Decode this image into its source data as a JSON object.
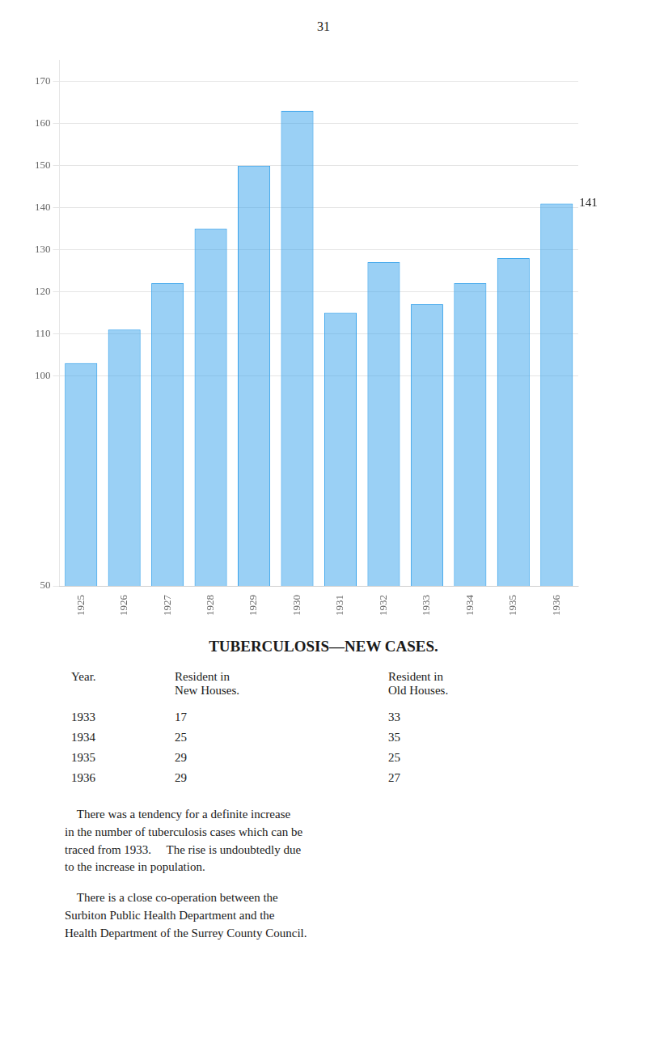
{
  "page_number": "31",
  "chart_data": {
    "type": "bar",
    "categories": [
      "1925",
      "1926",
      "1927",
      "1928",
      "1929",
      "1930",
      "1931",
      "1932",
      "1933",
      "1934",
      "1935",
      "1936"
    ],
    "values": [
      103,
      111,
      122,
      135,
      150,
      163,
      115,
      127,
      117,
      122,
      128,
      141
    ],
    "ylim": [
      50,
      175
    ],
    "yticks": [
      50,
      100,
      110,
      120,
      130,
      140,
      150,
      160,
      170
    ],
    "grid": true,
    "annotations": [
      {
        "text": "141",
        "x": "1936",
        "y": 141
      }
    ]
  },
  "table": {
    "title": "TUBERCULOSIS—NEW CASES.",
    "headers": [
      "Year.",
      "Resident in\nNew Houses.",
      "Resident in\nOld Houses."
    ],
    "rows": [
      [
        "1933",
        "17",
        "33"
      ],
      [
        "1934",
        "25",
        "35"
      ],
      [
        "1935",
        "29",
        "25"
      ],
      [
        "1936",
        "29",
        "27"
      ]
    ]
  },
  "paragraphs": [
    [
      "    There was a tendency for a definite increase",
      "in the number of tuberculosis cases which can be",
      "traced from 1933.  The rise is undoubtedly due",
      "to the increase in population."
    ],
    [
      "    There is a close co-operation between the",
      "Surbiton Public Health Department and the",
      "Health Department of the Surrey County Council."
    ]
  ]
}
